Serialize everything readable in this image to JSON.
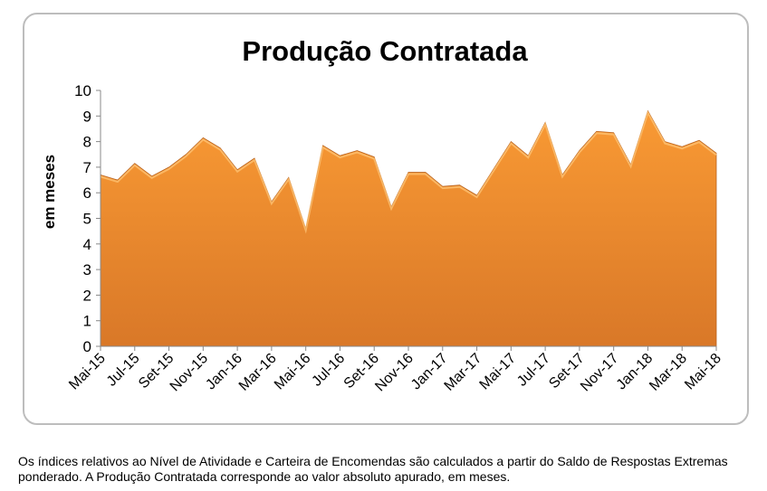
{
  "chart_data": {
    "type": "area",
    "title": "Produção Contratada",
    "ylabel": "em meses",
    "xlabel": "",
    "ylim": [
      0,
      10
    ],
    "yticks": [
      "0",
      "1",
      "2",
      "3",
      "4",
      "5",
      "6",
      "7",
      "8",
      "9",
      "10"
    ],
    "x_tick_labels": [
      "Mai-15",
      "Jul-15",
      "Set-15",
      "Nov-15",
      "Jan-16",
      "Mar-16",
      "Mai-16",
      "Jul-16",
      "Set-16",
      "Nov-16",
      "Jan-17",
      "Mar-17",
      "Mai-17",
      "Jul-17",
      "Set-17",
      "Nov-17",
      "Jan-18",
      "Mar-18",
      "Mai-18"
    ],
    "x": [
      "Mai-15",
      "Jun-15",
      "Jul-15",
      "Ago-15",
      "Set-15",
      "Out-15",
      "Nov-15",
      "Dez-15",
      "Jan-16",
      "Fev-16",
      "Mar-16",
      "Abr-16",
      "Mai-16",
      "Jun-16",
      "Jul-16",
      "Ago-16",
      "Set-16",
      "Out-16",
      "Nov-16",
      "Dez-16",
      "Jan-17",
      "Fev-17",
      "Mar-17",
      "Abr-17",
      "Mai-17",
      "Jun-17",
      "Jul-17",
      "Ago-17",
      "Set-17",
      "Out-17",
      "Nov-17",
      "Dez-17",
      "Jan-18",
      "Fev-18",
      "Mar-18",
      "Abr-18",
      "Mai-18"
    ],
    "values": [
      6.7,
      6.5,
      7.15,
      6.65,
      7.0,
      7.5,
      8.15,
      7.75,
      6.9,
      7.35,
      5.65,
      6.6,
      4.6,
      7.85,
      7.45,
      7.65,
      7.4,
      5.45,
      6.8,
      6.8,
      6.25,
      6.3,
      5.9,
      6.95,
      8.0,
      7.45,
      8.75,
      6.7,
      7.65,
      8.4,
      8.35,
      7.1,
      9.2,
      8.0,
      7.8,
      8.05,
      7.55
    ],
    "grid": false,
    "legend": "none",
    "color": "#f59330"
  },
  "footnote": "Os índices relativos ao Nível de Atividade e Carteira de Encomendas são calculados a partir do Saldo de Respostas Extremas ponderado. A Produção Contratada corresponde ao valor absoluto apurado, em meses."
}
